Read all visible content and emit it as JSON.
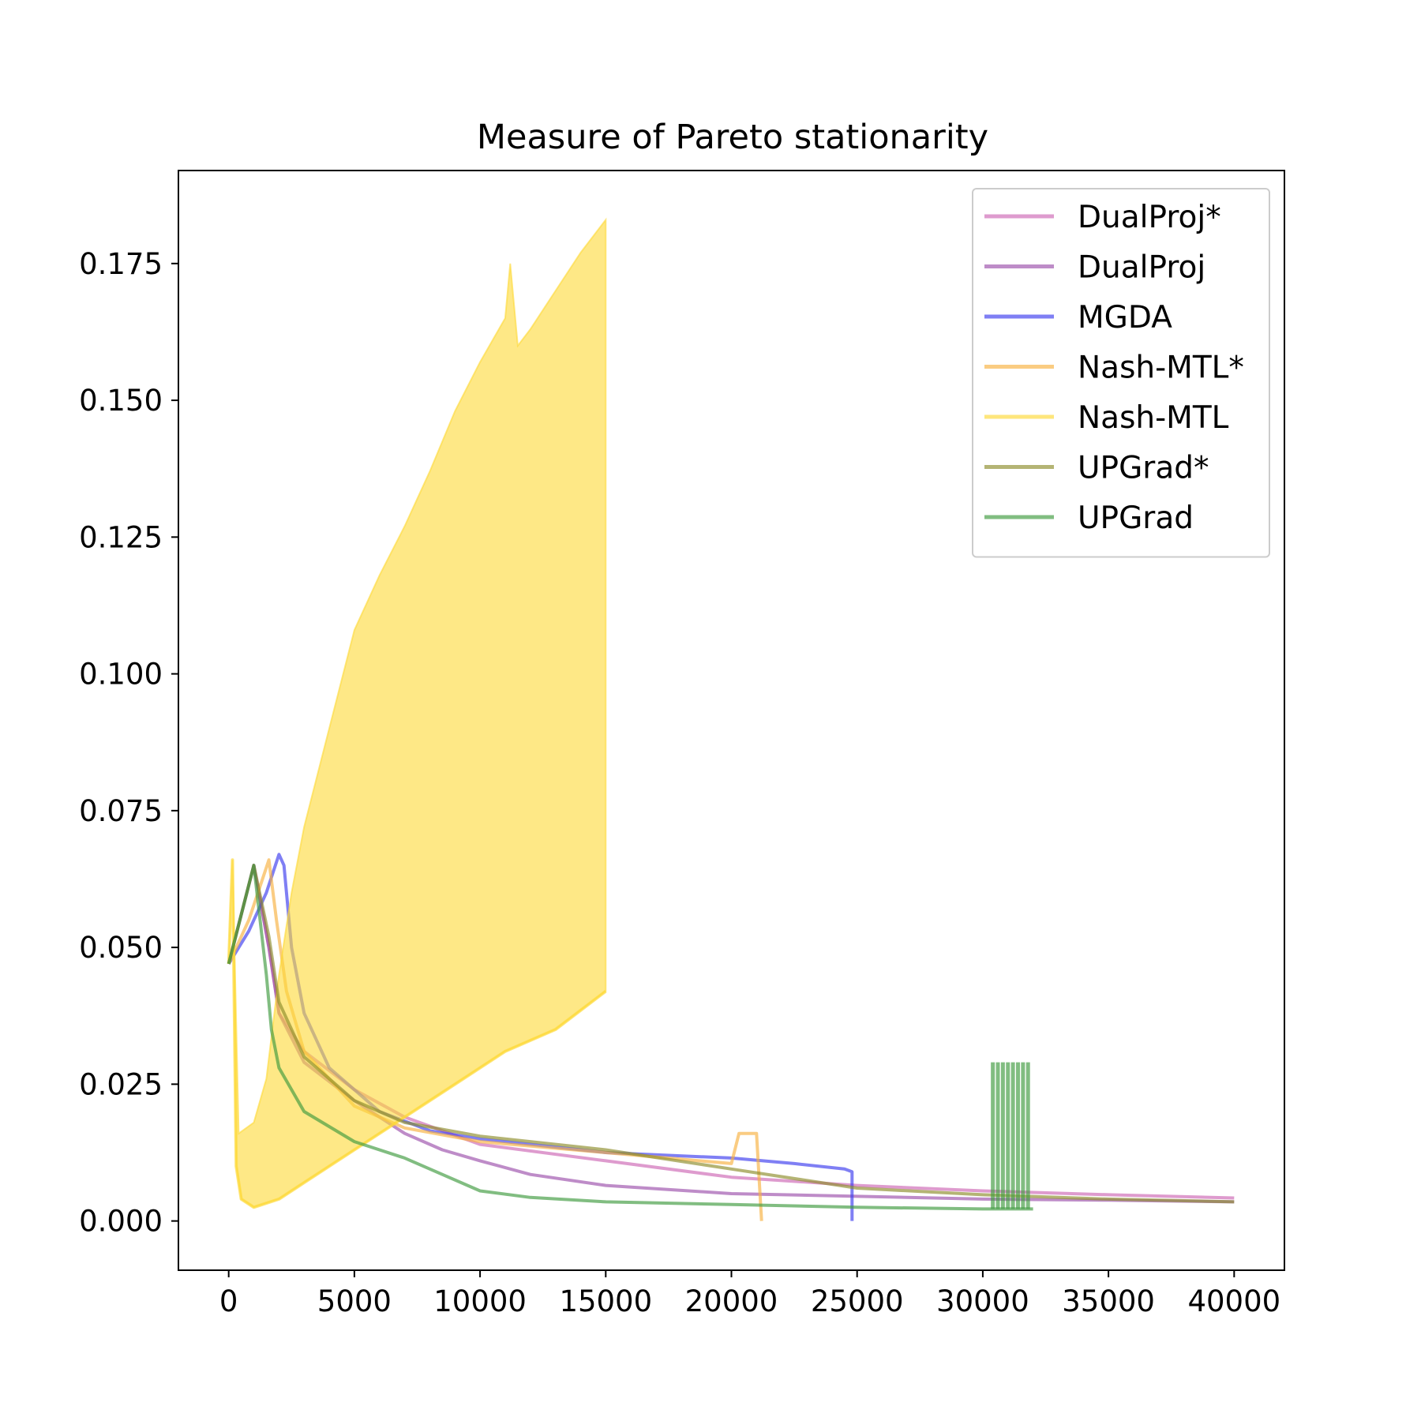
{
  "chart_data": {
    "type": "line",
    "title": "Measure of Pareto stationarity",
    "xlabel": "",
    "ylabel": "",
    "xlim": [
      -2000,
      42000
    ],
    "ylim": [
      -0.009,
      0.192
    ],
    "x_ticks": [
      0,
      5000,
      10000,
      15000,
      20000,
      25000,
      30000,
      35000,
      40000
    ],
    "x_tick_labels": [
      "0",
      "5000",
      "10000",
      "15000",
      "20000",
      "25000",
      "30000",
      "35000",
      "40000"
    ],
    "y_ticks": [
      0.0,
      0.025,
      0.05,
      0.075,
      0.1,
      0.125,
      0.15,
      0.175
    ],
    "y_tick_labels": [
      "0.000",
      "0.025",
      "0.050",
      "0.075",
      "0.100",
      "0.125",
      "0.150",
      "0.175"
    ],
    "grid": false,
    "legend_position": "top-right",
    "series": [
      {
        "name": "DualProj*",
        "color": "#cc66b3",
        "points": [
          [
            0,
            0.047
          ],
          [
            1000,
            0.065
          ],
          [
            1600,
            0.05
          ],
          [
            2000,
            0.038
          ],
          [
            3000,
            0.031
          ],
          [
            5000,
            0.024
          ],
          [
            7000,
            0.019
          ],
          [
            10000,
            0.014
          ],
          [
            15000,
            0.011
          ],
          [
            20000,
            0.008
          ],
          [
            25000,
            0.0065
          ],
          [
            30000,
            0.0055
          ],
          [
            35000,
            0.0048
          ],
          [
            40000,
            0.0042
          ]
        ]
      },
      {
        "name": "DualProj",
        "color": "#9b4fab",
        "points": [
          [
            0,
            0.047
          ],
          [
            1000,
            0.065
          ],
          [
            1600,
            0.05
          ],
          [
            2000,
            0.038
          ],
          [
            3000,
            0.029
          ],
          [
            5000,
            0.022
          ],
          [
            7000,
            0.016
          ],
          [
            8500,
            0.013
          ],
          [
            10000,
            0.011
          ],
          [
            12000,
            0.0085
          ],
          [
            15000,
            0.0065
          ],
          [
            20000,
            0.005
          ],
          [
            25000,
            0.0045
          ],
          [
            30000,
            0.004
          ],
          [
            35000,
            0.0038
          ],
          [
            40000,
            0.0035
          ]
        ]
      },
      {
        "name": "MGDA",
        "color": "#3b3bee",
        "points": [
          [
            0,
            0.047
          ],
          [
            800,
            0.053
          ],
          [
            1500,
            0.06
          ],
          [
            2000,
            0.067
          ],
          [
            2200,
            0.065
          ],
          [
            2500,
            0.05
          ],
          [
            3000,
            0.038
          ],
          [
            4000,
            0.028
          ],
          [
            6000,
            0.02
          ],
          [
            8000,
            0.0165
          ],
          [
            10000,
            0.015
          ],
          [
            15000,
            0.0125
          ],
          [
            20000,
            0.0115
          ],
          [
            22500,
            0.0105
          ],
          [
            24500,
            0.0095
          ],
          [
            24800,
            0.009
          ],
          [
            24800,
            0.0
          ]
        ]
      },
      {
        "name": "Nash-MTL*",
        "color": "#f7b13f",
        "points": [
          [
            0,
            0.047
          ],
          [
            800,
            0.055
          ],
          [
            1600,
            0.066
          ],
          [
            1900,
            0.055
          ],
          [
            2300,
            0.042
          ],
          [
            3000,
            0.031
          ],
          [
            4000,
            0.026
          ],
          [
            5000,
            0.021
          ],
          [
            7000,
            0.017
          ],
          [
            10000,
            0.0145
          ],
          [
            15000,
            0.0125
          ],
          [
            20000,
            0.0105
          ],
          [
            20300,
            0.016
          ],
          [
            21000,
            0.016
          ],
          [
            21200,
            0.0
          ]
        ]
      },
      {
        "name": "Nash-MTL",
        "color": "#fdd835",
        "points": [
          [
            0,
            0.047
          ],
          [
            150,
            0.066
          ],
          [
            300,
            0.01
          ],
          [
            500,
            0.004
          ],
          [
            1000,
            0.0025
          ],
          [
            2000,
            0.004
          ],
          [
            3000,
            0.007
          ],
          [
            5000,
            0.013
          ],
          [
            7000,
            0.019
          ],
          [
            9000,
            0.025
          ],
          [
            11000,
            0.031
          ],
          [
            13000,
            0.035
          ],
          [
            15000,
            0.042
          ]
        ],
        "upper_points": [
          [
            150,
            0.066
          ],
          [
            400,
            0.016
          ],
          [
            1000,
            0.018
          ],
          [
            1500,
            0.026
          ],
          [
            2000,
            0.045
          ],
          [
            2500,
            0.06
          ],
          [
            3000,
            0.072
          ],
          [
            4000,
            0.09
          ],
          [
            5000,
            0.108
          ],
          [
            6000,
            0.118
          ],
          [
            7000,
            0.127
          ],
          [
            8000,
            0.137
          ],
          [
            9000,
            0.148
          ],
          [
            10000,
            0.157
          ],
          [
            11000,
            0.165
          ],
          [
            11200,
            0.175
          ],
          [
            11500,
            0.16
          ],
          [
            12000,
            0.163
          ],
          [
            13000,
            0.17
          ],
          [
            14000,
            0.177
          ],
          [
            15000,
            0.183
          ]
        ]
      },
      {
        "name": "UPGrad*",
        "color": "#8c8c2a",
        "points": [
          [
            0,
            0.047
          ],
          [
            1000,
            0.065
          ],
          [
            1600,
            0.052
          ],
          [
            2000,
            0.04
          ],
          [
            3000,
            0.03
          ],
          [
            5000,
            0.022
          ],
          [
            7000,
            0.018
          ],
          [
            10000,
            0.0155
          ],
          [
            15000,
            0.013
          ],
          [
            20000,
            0.0095
          ],
          [
            25000,
            0.006
          ],
          [
            30000,
            0.0048
          ],
          [
            35000,
            0.004
          ],
          [
            40000,
            0.0035
          ]
        ]
      },
      {
        "name": "UPGrad",
        "color": "#3e9a3e",
        "points": [
          [
            0,
            0.047
          ],
          [
            1000,
            0.065
          ],
          [
            1500,
            0.045
          ],
          [
            1700,
            0.035
          ],
          [
            2000,
            0.028
          ],
          [
            3000,
            0.02
          ],
          [
            5000,
            0.0145
          ],
          [
            7000,
            0.0115
          ],
          [
            8500,
            0.0085
          ],
          [
            10000,
            0.0055
          ],
          [
            12000,
            0.0043
          ],
          [
            15000,
            0.0035
          ],
          [
            20000,
            0.003
          ],
          [
            25000,
            0.0025
          ],
          [
            30000,
            0.0022
          ],
          [
            32000,
            0.0022
          ]
        ],
        "spikes": [
          [
            30400,
            0.029
          ],
          [
            30600,
            0.029
          ],
          [
            30800,
            0.029
          ],
          [
            31000,
            0.029
          ],
          [
            31200,
            0.029
          ],
          [
            31400,
            0.029
          ],
          [
            31600,
            0.029
          ],
          [
            31800,
            0.029
          ]
        ]
      }
    ]
  }
}
